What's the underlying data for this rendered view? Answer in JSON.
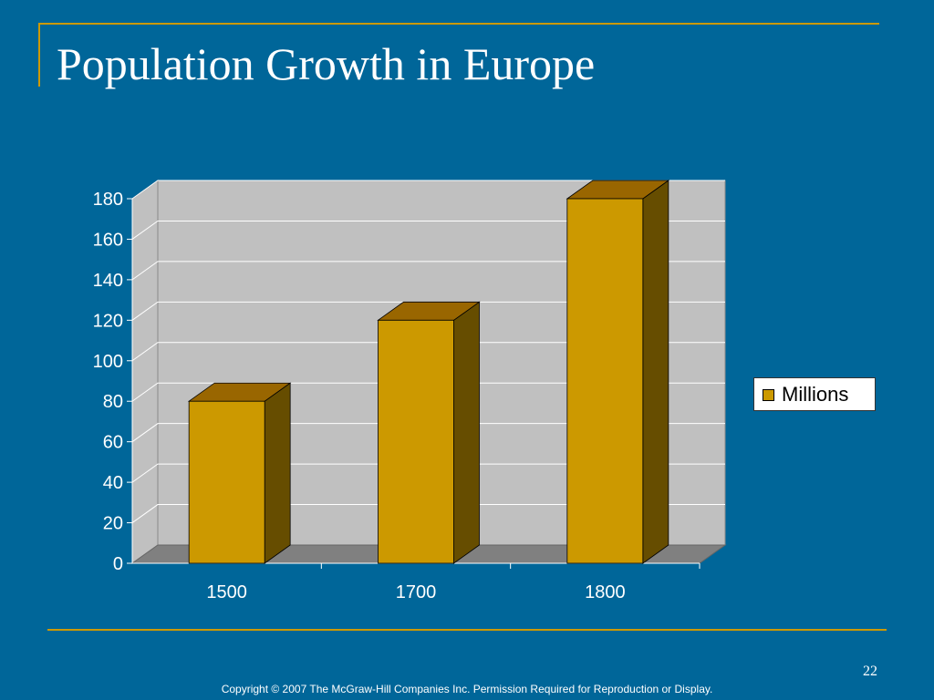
{
  "slide": {
    "title": "Population Growth in Europe",
    "page_number": "22",
    "copyright": "Copyright © 2007 The McGraw-Hill Companies Inc. Permission Required for Reproduction or Display."
  },
  "colors": {
    "background": "#006699",
    "accent": "#cc9900",
    "bar_front": "#cc9900",
    "bar_top": "#996600",
    "bar_side": "#664d00",
    "plot_back": "#c0c0c0",
    "plot_floor": "#808080"
  },
  "chart_data": {
    "type": "bar",
    "title": "",
    "xlabel": "",
    "ylabel": "",
    "categories": [
      "1500",
      "1700",
      "1800"
    ],
    "series": [
      {
        "name": "Millions",
        "values": [
          80,
          120,
          180
        ]
      }
    ],
    "ylim": [
      0,
      180
    ],
    "yticks": [
      0,
      20,
      40,
      60,
      80,
      100,
      120,
      140,
      160,
      180
    ],
    "grid": true,
    "legend": "right",
    "style": "3d"
  }
}
